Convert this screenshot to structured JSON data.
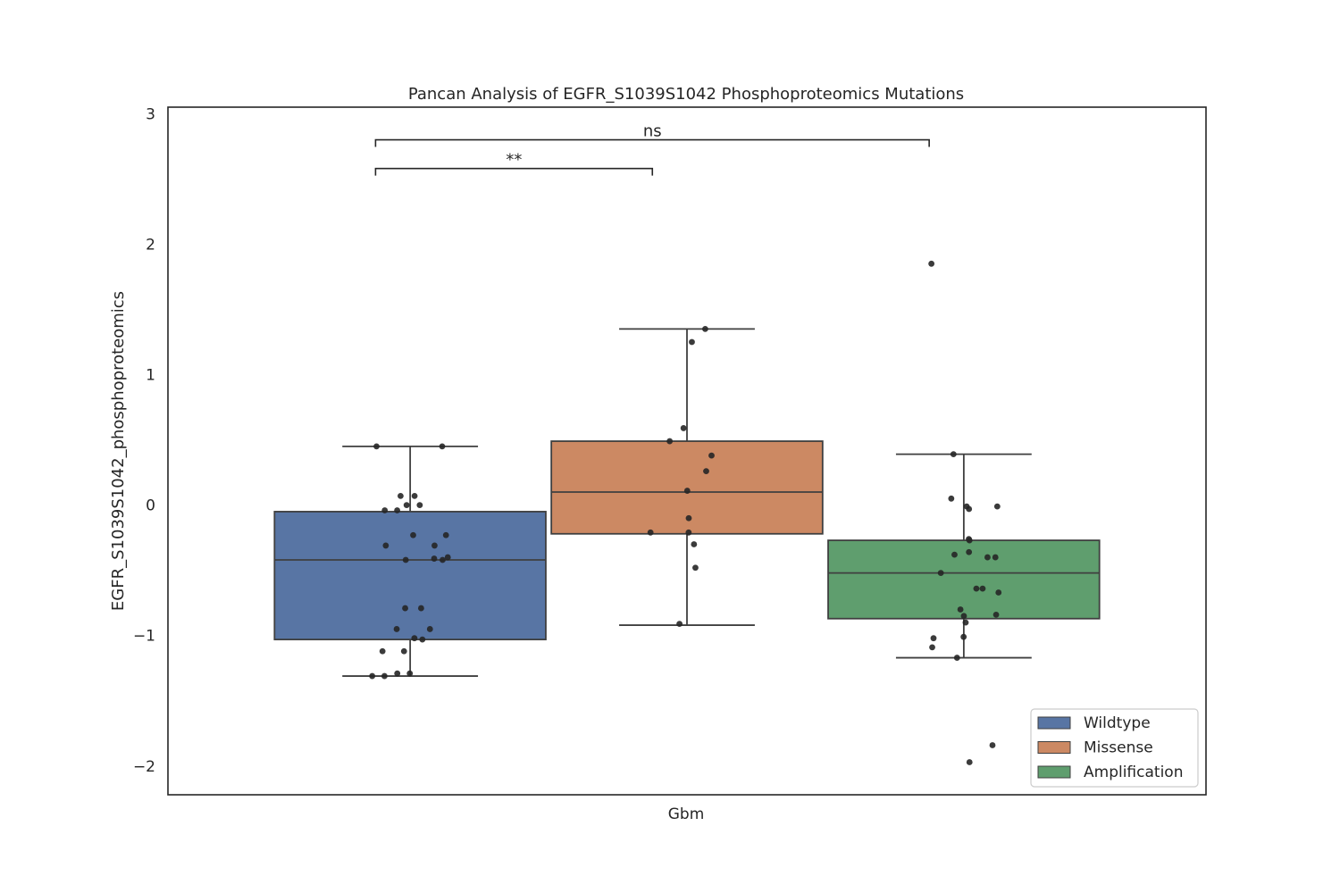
{
  "chart_data": {
    "type": "box",
    "title": "Pancan Analysis of EGFR_S1039S1042 Phosphoproteomics Mutations",
    "xlabel": "",
    "ylabel": "EGFR_S1039S1042_phosphoproteomics",
    "categories": [
      "Gbm"
    ],
    "ylim": [
      -2.22,
      3.05
    ],
    "yticks": [
      -2,
      -1,
      0,
      1,
      2,
      3
    ],
    "ytick_labels": [
      "−2",
      "−1",
      "0",
      "1",
      "2",
      "3"
    ],
    "grid": false,
    "legend_position": "lower-right",
    "series": [
      {
        "name": "Wildtype",
        "color": "#5875a4",
        "box": {
          "whisker_low": -1.31,
          "q1": -1.03,
          "median": -0.42,
          "q3": -0.05,
          "whisker_high": 0.45
        },
        "points": [
          0.45,
          0.45,
          0.07,
          0.07,
          0.0,
          0.0,
          -0.04,
          -0.04,
          -0.23,
          -0.23,
          -0.31,
          -0.31,
          -0.4,
          -0.41,
          -0.42,
          -0.42,
          -0.79,
          -0.79,
          -0.95,
          -0.95,
          -1.02,
          -1.03,
          -1.12,
          -1.12,
          -1.29,
          -1.29,
          -1.31,
          -1.31
        ]
      },
      {
        "name": "Missense",
        "color": "#cc8963",
        "box": {
          "whisker_low": -0.92,
          "q1": -0.22,
          "median": 0.1,
          "q3": 0.49,
          "whisker_high": 1.35
        },
        "points": [
          1.35,
          1.25,
          0.59,
          0.49,
          0.38,
          0.26,
          0.11,
          -0.1,
          -0.21,
          -0.21,
          -0.3,
          -0.48,
          -0.91
        ]
      },
      {
        "name": "Amplification",
        "color": "#5f9e6e",
        "box": {
          "whisker_low": -1.17,
          "q1": -0.87,
          "median": -0.52,
          "q3": -0.27,
          "whisker_high": 0.39
        },
        "outliers": [
          1.85,
          -1.84,
          -1.97
        ],
        "points": [
          1.85,
          0.39,
          0.05,
          -0.01,
          -0.01,
          -0.03,
          -0.26,
          -0.27,
          -0.36,
          -0.38,
          -0.4,
          -0.4,
          -0.52,
          -0.64,
          -0.64,
          -0.67,
          -0.8,
          -0.84,
          -0.85,
          -0.9,
          -1.01,
          -1.02,
          -1.09,
          -1.17,
          -1.84,
          -1.97
        ]
      }
    ],
    "annotations": [
      {
        "label": "**",
        "from": "Wildtype",
        "to": "Missense",
        "y": 2.58
      },
      {
        "label": "ns",
        "from": "Wildtype",
        "to": "Amplification",
        "y": 2.8
      }
    ],
    "legend": [
      "Wildtype",
      "Missense",
      "Amplification"
    ]
  }
}
